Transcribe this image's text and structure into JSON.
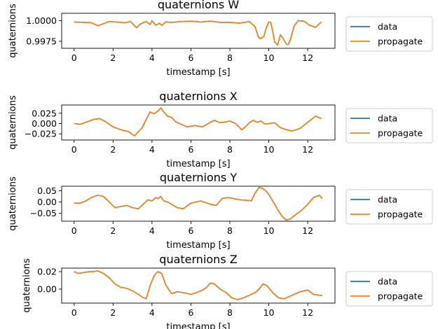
{
  "figure": {
    "background": "#ffffff"
  },
  "chart_data": [
    {
      "type": "line",
      "title": "quaternions W",
      "xlabel": "timestamp [s]",
      "ylabel": "quaternions",
      "xlim": [
        -0.64,
        13.4
      ],
      "ylim": [
        0.99665,
        1.0009
      ],
      "xticks": [
        0,
        2,
        4,
        6,
        8,
        10,
        12
      ],
      "xtick_labels": [
        "0",
        "2",
        "4",
        "6",
        "8",
        "10",
        "12"
      ],
      "yticks": [
        0.9975,
        1.0
      ],
      "ytick_labels": [
        "0.9975",
        "1.0000"
      ],
      "grid": false,
      "legend": {
        "position": "outside-right",
        "entries": [
          "data",
          "propagate"
        ]
      },
      "colors": {
        "data": "#1f77b4",
        "propagate": "#ff7f0e"
      },
      "x": [
        0,
        0.5,
        0.9,
        1.2,
        1.4,
        1.8,
        2.2,
        2.6,
        2.9,
        3.2,
        3.4,
        3.7,
        3.9,
        4.0,
        4.2,
        4.4,
        4.5,
        4.7,
        5.0,
        5.5,
        6.0,
        6.5,
        7.0,
        7.5,
        8.0,
        8.5,
        9.0,
        9.3,
        9.45,
        9.55,
        9.65,
        9.75,
        9.85,
        10.0,
        10.1,
        10.2,
        10.3,
        10.45,
        10.6,
        10.75,
        10.9,
        11.0,
        11.1,
        11.3,
        11.5,
        11.8,
        12.1,
        12.4,
        12.7
      ],
      "series": [
        {
          "name": "data",
          "values": [
            0.99985,
            0.9998,
            0.99975,
            0.9994,
            0.99955,
            0.9999,
            0.99985,
            0.99975,
            0.9999,
            0.99915,
            0.9996,
            0.9999,
            0.99955,
            1.0,
            0.99945,
            0.9997,
            0.9994,
            0.99985,
            0.9998,
            0.9999,
            0.99995,
            0.99985,
            0.99995,
            0.9998,
            0.9998,
            0.9997,
            0.9999,
            0.99925,
            0.9981,
            0.9978,
            0.99795,
            0.9981,
            0.999,
            0.99985,
            0.9998,
            0.99875,
            0.9974,
            0.99705,
            0.9983,
            0.9978,
            0.99715,
            0.9971,
            0.99765,
            0.99935,
            1.0,
            0.99995,
            0.99945,
            0.9992,
            0.99985
          ]
        },
        {
          "name": "propagate",
          "values": [
            0.99985,
            0.9998,
            0.99975,
            0.9994,
            0.99955,
            0.9999,
            0.99985,
            0.99975,
            0.9999,
            0.99915,
            0.9996,
            0.9999,
            0.99955,
            1.0,
            0.99945,
            0.9997,
            0.9994,
            0.99985,
            0.9998,
            0.9999,
            0.99995,
            0.99985,
            0.99995,
            0.9998,
            0.9998,
            0.9997,
            0.9999,
            0.99925,
            0.9981,
            0.9978,
            0.99795,
            0.9981,
            0.999,
            0.99985,
            0.9998,
            0.99875,
            0.9974,
            0.99705,
            0.9983,
            0.9978,
            0.99715,
            0.9971,
            0.99765,
            0.99935,
            1.0,
            0.99995,
            0.99945,
            0.9992,
            0.99985
          ]
        }
      ]
    },
    {
      "type": "line",
      "title": "quaternions X",
      "xlabel": "timestamp [s]",
      "ylabel": "quaternions",
      "xlim": [
        -0.64,
        13.4
      ],
      "ylim": [
        -0.04,
        0.045
      ],
      "xticks": [
        0,
        2,
        4,
        6,
        8,
        10,
        12
      ],
      "xtick_labels": [
        "0",
        "2",
        "4",
        "6",
        "8",
        "10",
        "12"
      ],
      "yticks": [
        -0.025,
        0.0,
        0.025
      ],
      "ytick_labels": [
        "−0.025",
        "0.000",
        "0.025"
      ],
      "grid": false,
      "legend": {
        "position": "outside-right",
        "entries": [
          "data",
          "propagate"
        ]
      },
      "colors": {
        "data": "#1f77b4",
        "propagate": "#ff7f0e"
      },
      "x": [
        0,
        0.3,
        0.6,
        1.0,
        1.3,
        1.6,
        2.0,
        2.4,
        2.8,
        3.1,
        3.3,
        3.5,
        3.7,
        3.9,
        4.1,
        4.3,
        4.45,
        4.6,
        4.8,
        5.0,
        5.2,
        5.5,
        5.8,
        6.2,
        6.6,
        7.0,
        7.2,
        7.5,
        7.8,
        8.0,
        8.3,
        8.6,
        8.8,
        9.0,
        9.2,
        9.4,
        9.6,
        9.8,
        10.0,
        10.3,
        10.6,
        10.9,
        11.2,
        11.6,
        12.0,
        12.4,
        12.7
      ],
      "series": [
        {
          "name": "data",
          "values": [
            0.0,
            -0.002,
            0.003,
            0.01,
            0.012,
            0.005,
            -0.008,
            -0.015,
            -0.02,
            -0.03,
            -0.02,
            -0.01,
            0.01,
            0.028,
            0.024,
            0.03,
            0.038,
            0.028,
            0.018,
            0.015,
            0.005,
            -0.002,
            -0.008,
            -0.005,
            -0.008,
            0.003,
            0.008,
            0.002,
            0.004,
            0.006,
            0.0,
            -0.015,
            -0.008,
            0.002,
            0.008,
            0.003,
            0.006,
            -0.001,
            0.0,
            0.002,
            -0.01,
            -0.015,
            -0.018,
            -0.012,
            0.003,
            0.018,
            0.012
          ]
        },
        {
          "name": "propagate",
          "values": [
            0.0,
            -0.002,
            0.003,
            0.01,
            0.012,
            0.005,
            -0.008,
            -0.015,
            -0.02,
            -0.03,
            -0.02,
            -0.01,
            0.01,
            0.028,
            0.024,
            0.03,
            0.038,
            0.028,
            0.018,
            0.015,
            0.005,
            -0.002,
            -0.008,
            -0.005,
            -0.008,
            0.003,
            0.008,
            0.002,
            0.004,
            0.006,
            0.0,
            -0.015,
            -0.008,
            0.002,
            0.008,
            0.003,
            0.006,
            -0.001,
            0.0,
            0.002,
            -0.01,
            -0.015,
            -0.018,
            -0.012,
            0.003,
            0.018,
            0.012
          ]
        }
      ]
    },
    {
      "type": "line",
      "title": "quaternions Y",
      "xlabel": "timestamp [s]",
      "ylabel": "quaternions",
      "xlim": [
        -0.64,
        13.4
      ],
      "ylim": [
        -0.085,
        0.07
      ],
      "xticks": [
        0,
        2,
        4,
        6,
        8,
        10,
        12
      ],
      "xtick_labels": [
        "0",
        "2",
        "4",
        "6",
        "8",
        "10",
        "12"
      ],
      "yticks": [
        -0.05,
        0.0,
        0.05
      ],
      "ytick_labels": [
        "−0.05",
        "0.00",
        "0.05"
      ],
      "grid": false,
      "legend": {
        "position": "outside-right",
        "entries": [
          "data",
          "propagate"
        ]
      },
      "colors": {
        "data": "#1f77b4",
        "propagate": "#ff7f0e"
      },
      "x": [
        0,
        0.3,
        0.6,
        0.9,
        1.2,
        1.5,
        1.8,
        2.1,
        2.4,
        2.7,
        3.0,
        3.3,
        3.6,
        3.8,
        4.0,
        4.2,
        4.3,
        4.45,
        4.6,
        4.8,
        5.0,
        5.3,
        5.6,
        6.0,
        6.5,
        7.0,
        7.3,
        7.6,
        7.9,
        8.2,
        8.5,
        8.8,
        9.1,
        9.3,
        9.5,
        9.7,
        9.9,
        10.1,
        10.3,
        10.5,
        10.7,
        10.9,
        11.1,
        11.4,
        11.7,
        12.0,
        12.3,
        12.6,
        12.75
      ],
      "series": [
        {
          "name": "data",
          "values": [
            -0.005,
            -0.005,
            0.005,
            0.02,
            0.03,
            0.025,
            0.0,
            -0.025,
            -0.02,
            -0.015,
            -0.025,
            -0.03,
            -0.005,
            0.01,
            0.005,
            0.02,
            0.015,
            0.025,
            0.005,
            0.0,
            -0.01,
            -0.025,
            -0.03,
            -0.005,
            0.005,
            -0.01,
            -0.015,
            0.015,
            0.02,
            0.015,
            0.01,
            0.008,
            0.005,
            0.04,
            0.065,
            0.06,
            0.045,
            0.02,
            -0.01,
            -0.04,
            -0.065,
            -0.08,
            -0.075,
            -0.055,
            -0.035,
            -0.01,
            0.02,
            0.03,
            0.015
          ]
        },
        {
          "name": "propagate",
          "values": [
            -0.005,
            -0.005,
            0.005,
            0.02,
            0.03,
            0.025,
            0.0,
            -0.025,
            -0.02,
            -0.015,
            -0.025,
            -0.03,
            -0.005,
            0.01,
            0.005,
            0.02,
            0.015,
            0.025,
            0.005,
            0.0,
            -0.01,
            -0.025,
            -0.03,
            -0.005,
            0.005,
            -0.01,
            -0.015,
            0.015,
            0.02,
            0.015,
            0.01,
            0.008,
            0.005,
            0.04,
            0.065,
            0.06,
            0.045,
            0.02,
            -0.01,
            -0.04,
            -0.065,
            -0.08,
            -0.075,
            -0.055,
            -0.035,
            -0.01,
            0.02,
            0.03,
            0.015
          ]
        }
      ]
    },
    {
      "type": "line",
      "title": "quaternions Z",
      "xlabel": "timestamp [s]",
      "ylabel": "quaternions",
      "xlim": [
        -0.64,
        13.4
      ],
      "ylim": [
        -0.016,
        0.024
      ],
      "xticks": [
        0,
        2,
        4,
        6,
        8,
        10,
        12
      ],
      "xtick_labels": [
        "0",
        "2",
        "4",
        "6",
        "8",
        "10",
        "12"
      ],
      "yticks": [
        0.0,
        0.02
      ],
      "ytick_labels": [
        "0.00",
        "0.02"
      ],
      "grid": false,
      "legend": {
        "position": "outside-right",
        "entries": [
          "data",
          "propagate"
        ]
      },
      "colors": {
        "data": "#1f77b4",
        "propagate": "#ff7f0e"
      },
      "x": [
        0,
        0.2,
        0.5,
        0.8,
        1.0,
        1.2,
        1.5,
        1.8,
        2.1,
        2.4,
        2.7,
        3.0,
        3.3,
        3.5,
        3.7,
        3.9,
        4.1,
        4.3,
        4.5,
        4.7,
        5.0,
        5.3,
        5.6,
        6.0,
        6.3,
        6.6,
        6.8,
        7.0,
        7.2,
        7.5,
        7.8,
        8.1,
        8.4,
        8.7,
        9.0,
        9.3,
        9.5,
        9.7,
        9.9,
        10.2,
        10.5,
        10.8,
        11.0,
        11.3,
        11.6,
        12.0,
        12.3,
        12.6,
        12.75
      ],
      "series": [
        {
          "name": "data",
          "values": [
            0.02,
            0.018,
            0.019,
            0.02,
            0.02,
            0.021,
            0.018,
            0.013,
            0.006,
            0.002,
            0.001,
            -0.002,
            -0.006,
            -0.009,
            -0.011,
            0.004,
            0.015,
            0.02,
            0.018,
            0.005,
            -0.005,
            -0.003,
            -0.004,
            -0.006,
            -0.004,
            -0.001,
            0.002,
            0.007,
            0.006,
            0.0,
            -0.004,
            -0.01,
            -0.012,
            -0.01,
            -0.007,
            -0.004,
            0.0,
            0.006,
            0.004,
            -0.004,
            -0.01,
            -0.011,
            -0.009,
            -0.006,
            -0.003,
            -0.001,
            -0.006,
            -0.007,
            -0.007
          ]
        },
        {
          "name": "propagate",
          "values": [
            0.02,
            0.018,
            0.019,
            0.02,
            0.02,
            0.021,
            0.018,
            0.013,
            0.006,
            0.002,
            0.001,
            -0.002,
            -0.006,
            -0.009,
            -0.011,
            0.004,
            0.015,
            0.02,
            0.018,
            0.005,
            -0.005,
            -0.003,
            -0.004,
            -0.006,
            -0.004,
            -0.001,
            0.002,
            0.007,
            0.006,
            0.0,
            -0.004,
            -0.01,
            -0.012,
            -0.01,
            -0.007,
            -0.004,
            0.0,
            0.006,
            0.004,
            -0.004,
            -0.01,
            -0.011,
            -0.009,
            -0.006,
            -0.003,
            -0.001,
            -0.006,
            -0.007,
            -0.007
          ]
        }
      ]
    }
  ]
}
